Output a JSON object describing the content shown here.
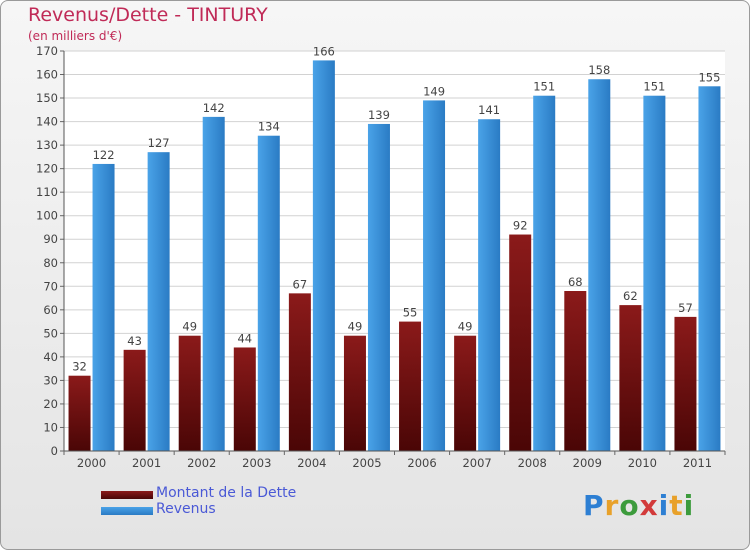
{
  "header": {
    "title": "Revenus/Dette - TINTURY",
    "subtitle": "(en milliers d'€)"
  },
  "logo": {
    "text": "Proxiti",
    "letters": [
      "P",
      "r",
      "o",
      "x",
      "i",
      "t",
      "i"
    ],
    "colors": [
      "#2d7fd3",
      "#e8a12a",
      "#3c9b3c",
      "#d23a3a",
      "#2d7fd3",
      "#e8a12a",
      "#3c9b3c"
    ]
  },
  "colors": {
    "debt": "#8b1a1a",
    "debt_dark": "#4a0606",
    "revenue": "#4aa3e8",
    "revenue_dark": "#2a7bc4",
    "axis_text": "#444444",
    "grid": "#d2d2d2"
  },
  "chart_data": {
    "type": "bar",
    "categories": [
      "2000",
      "2001",
      "2002",
      "2003",
      "2004",
      "2005",
      "2006",
      "2007",
      "2008",
      "2009",
      "2010",
      "2011"
    ],
    "series": [
      {
        "name": "Montant de la Dette",
        "values": [
          32,
          43,
          49,
          44,
          67,
          49,
          55,
          49,
          92,
          68,
          62,
          57
        ]
      },
      {
        "name": "Revenus",
        "values": [
          122,
          127,
          142,
          134,
          166,
          139,
          149,
          141,
          151,
          158,
          151,
          155
        ]
      }
    ],
    "ylim": [
      0,
      170
    ],
    "yticks": [
      0,
      10,
      20,
      30,
      40,
      50,
      60,
      70,
      80,
      90,
      100,
      110,
      120,
      130,
      140,
      150,
      160,
      170
    ],
    "grid": true,
    "legend_position": "bottom-left",
    "data_labels": true
  }
}
